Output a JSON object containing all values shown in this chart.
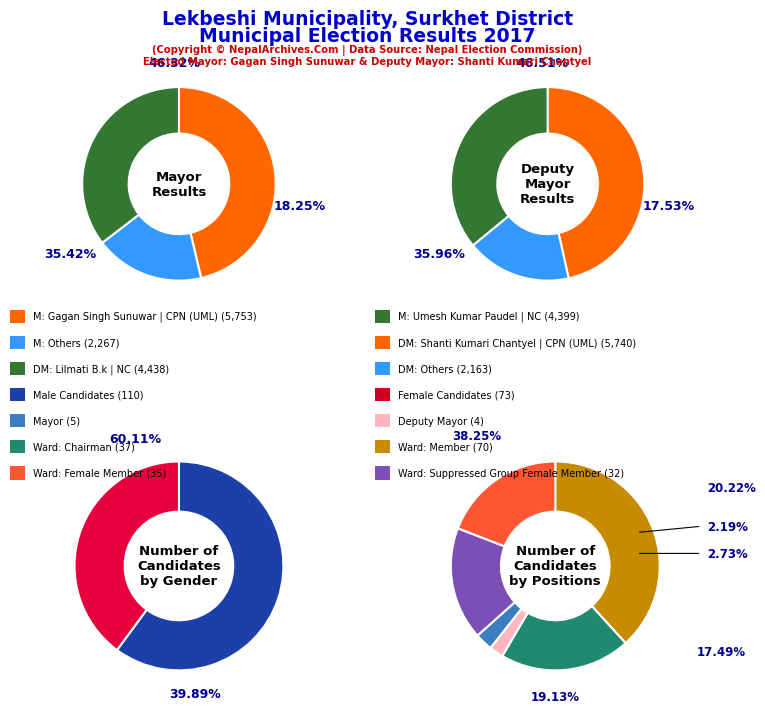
{
  "title_line1": "Lekbeshi Municipality, Surkhet District",
  "title_line2": "Municipal Election Results 2017",
  "subtitle1": "(Copyright © NepalArchives.Com | Data Source: Nepal Election Commission)",
  "subtitle2": "Elected Mayor: Gagan Singh Sunuwar & Deputy Mayor: Shanti Kumari Chantyel",
  "title_color": "#0000CC",
  "subtitle_color": "#CC0000",
  "mayor_values": [
    46.32,
    18.25,
    35.42
  ],
  "mayor_colors": [
    "#FF6600",
    "#3399FF",
    "#337733"
  ],
  "mayor_label": "Mayor\nResults",
  "mayor_pct_labels": [
    "46.32%",
    "18.25%",
    "35.42%"
  ],
  "mayor_pct_angles": [
    0,
    1,
    2
  ],
  "deputy_values": [
    46.51,
    17.53,
    35.96
  ],
  "deputy_colors": [
    "#FF6600",
    "#3399FF",
    "#337733"
  ],
  "deputy_label": "Deputy\nMayor\nResults",
  "deputy_pct_labels": [
    "46.51%",
    "17.53%",
    "35.96%"
  ],
  "gender_values": [
    60.11,
    39.89
  ],
  "gender_colors": [
    "#1C3FAA",
    "#E8003D"
  ],
  "gender_label": "Number of\nCandidates\nby Gender",
  "gender_pct_labels": [
    "60.11%",
    "39.89%"
  ],
  "positions_values": [
    38.25,
    20.22,
    2.19,
    2.73,
    17.49,
    19.13
  ],
  "positions_colors": [
    "#C68B00",
    "#1F8A70",
    "#FFB6C1",
    "#3A7EBF",
    "#7B4FB5",
    "#FF5533"
  ],
  "positions_label": "Number of\nCandidates\nby Positions",
  "positions_pct_labels": [
    "38.25%",
    "20.22%",
    "2.19%",
    "2.73%",
    "17.49%",
    "19.13%"
  ],
  "legend_left": [
    {
      "label": "M: Gagan Singh Sunuwar | CPN (UML) (5,753)",
      "color": "#FF6600"
    },
    {
      "label": "M: Others (2,267)",
      "color": "#3399FF"
    },
    {
      "label": "DM: Lilmati B.k | NC (4,438)",
      "color": "#337733"
    },
    {
      "label": "Male Candidates (110)",
      "color": "#1C3FAA"
    },
    {
      "label": "Mayor (5)",
      "color": "#3A7EBF"
    },
    {
      "label": "Ward: Chairman (37)",
      "color": "#1F8A70"
    },
    {
      "label": "Ward: Female Member (35)",
      "color": "#FF5533"
    }
  ],
  "legend_right": [
    {
      "label": "M: Umesh Kumar Paudel | NC (4,399)",
      "color": "#337733"
    },
    {
      "label": "DM: Shanti Kumari Chantyel | CPN (UML) (5,740)",
      "color": "#FF6600"
    },
    {
      "label": "DM: Others (2,163)",
      "color": "#3399FF"
    },
    {
      "label": "Female Candidates (73)",
      "color": "#CC0022"
    },
    {
      "label": "Deputy Mayor (4)",
      "color": "#FFB6C1"
    },
    {
      "label": "Ward: Member (70)",
      "color": "#C68B00"
    },
    {
      "label": "Ward: Suppressed Group Female Member (32)",
      "color": "#7B4FB5"
    }
  ]
}
